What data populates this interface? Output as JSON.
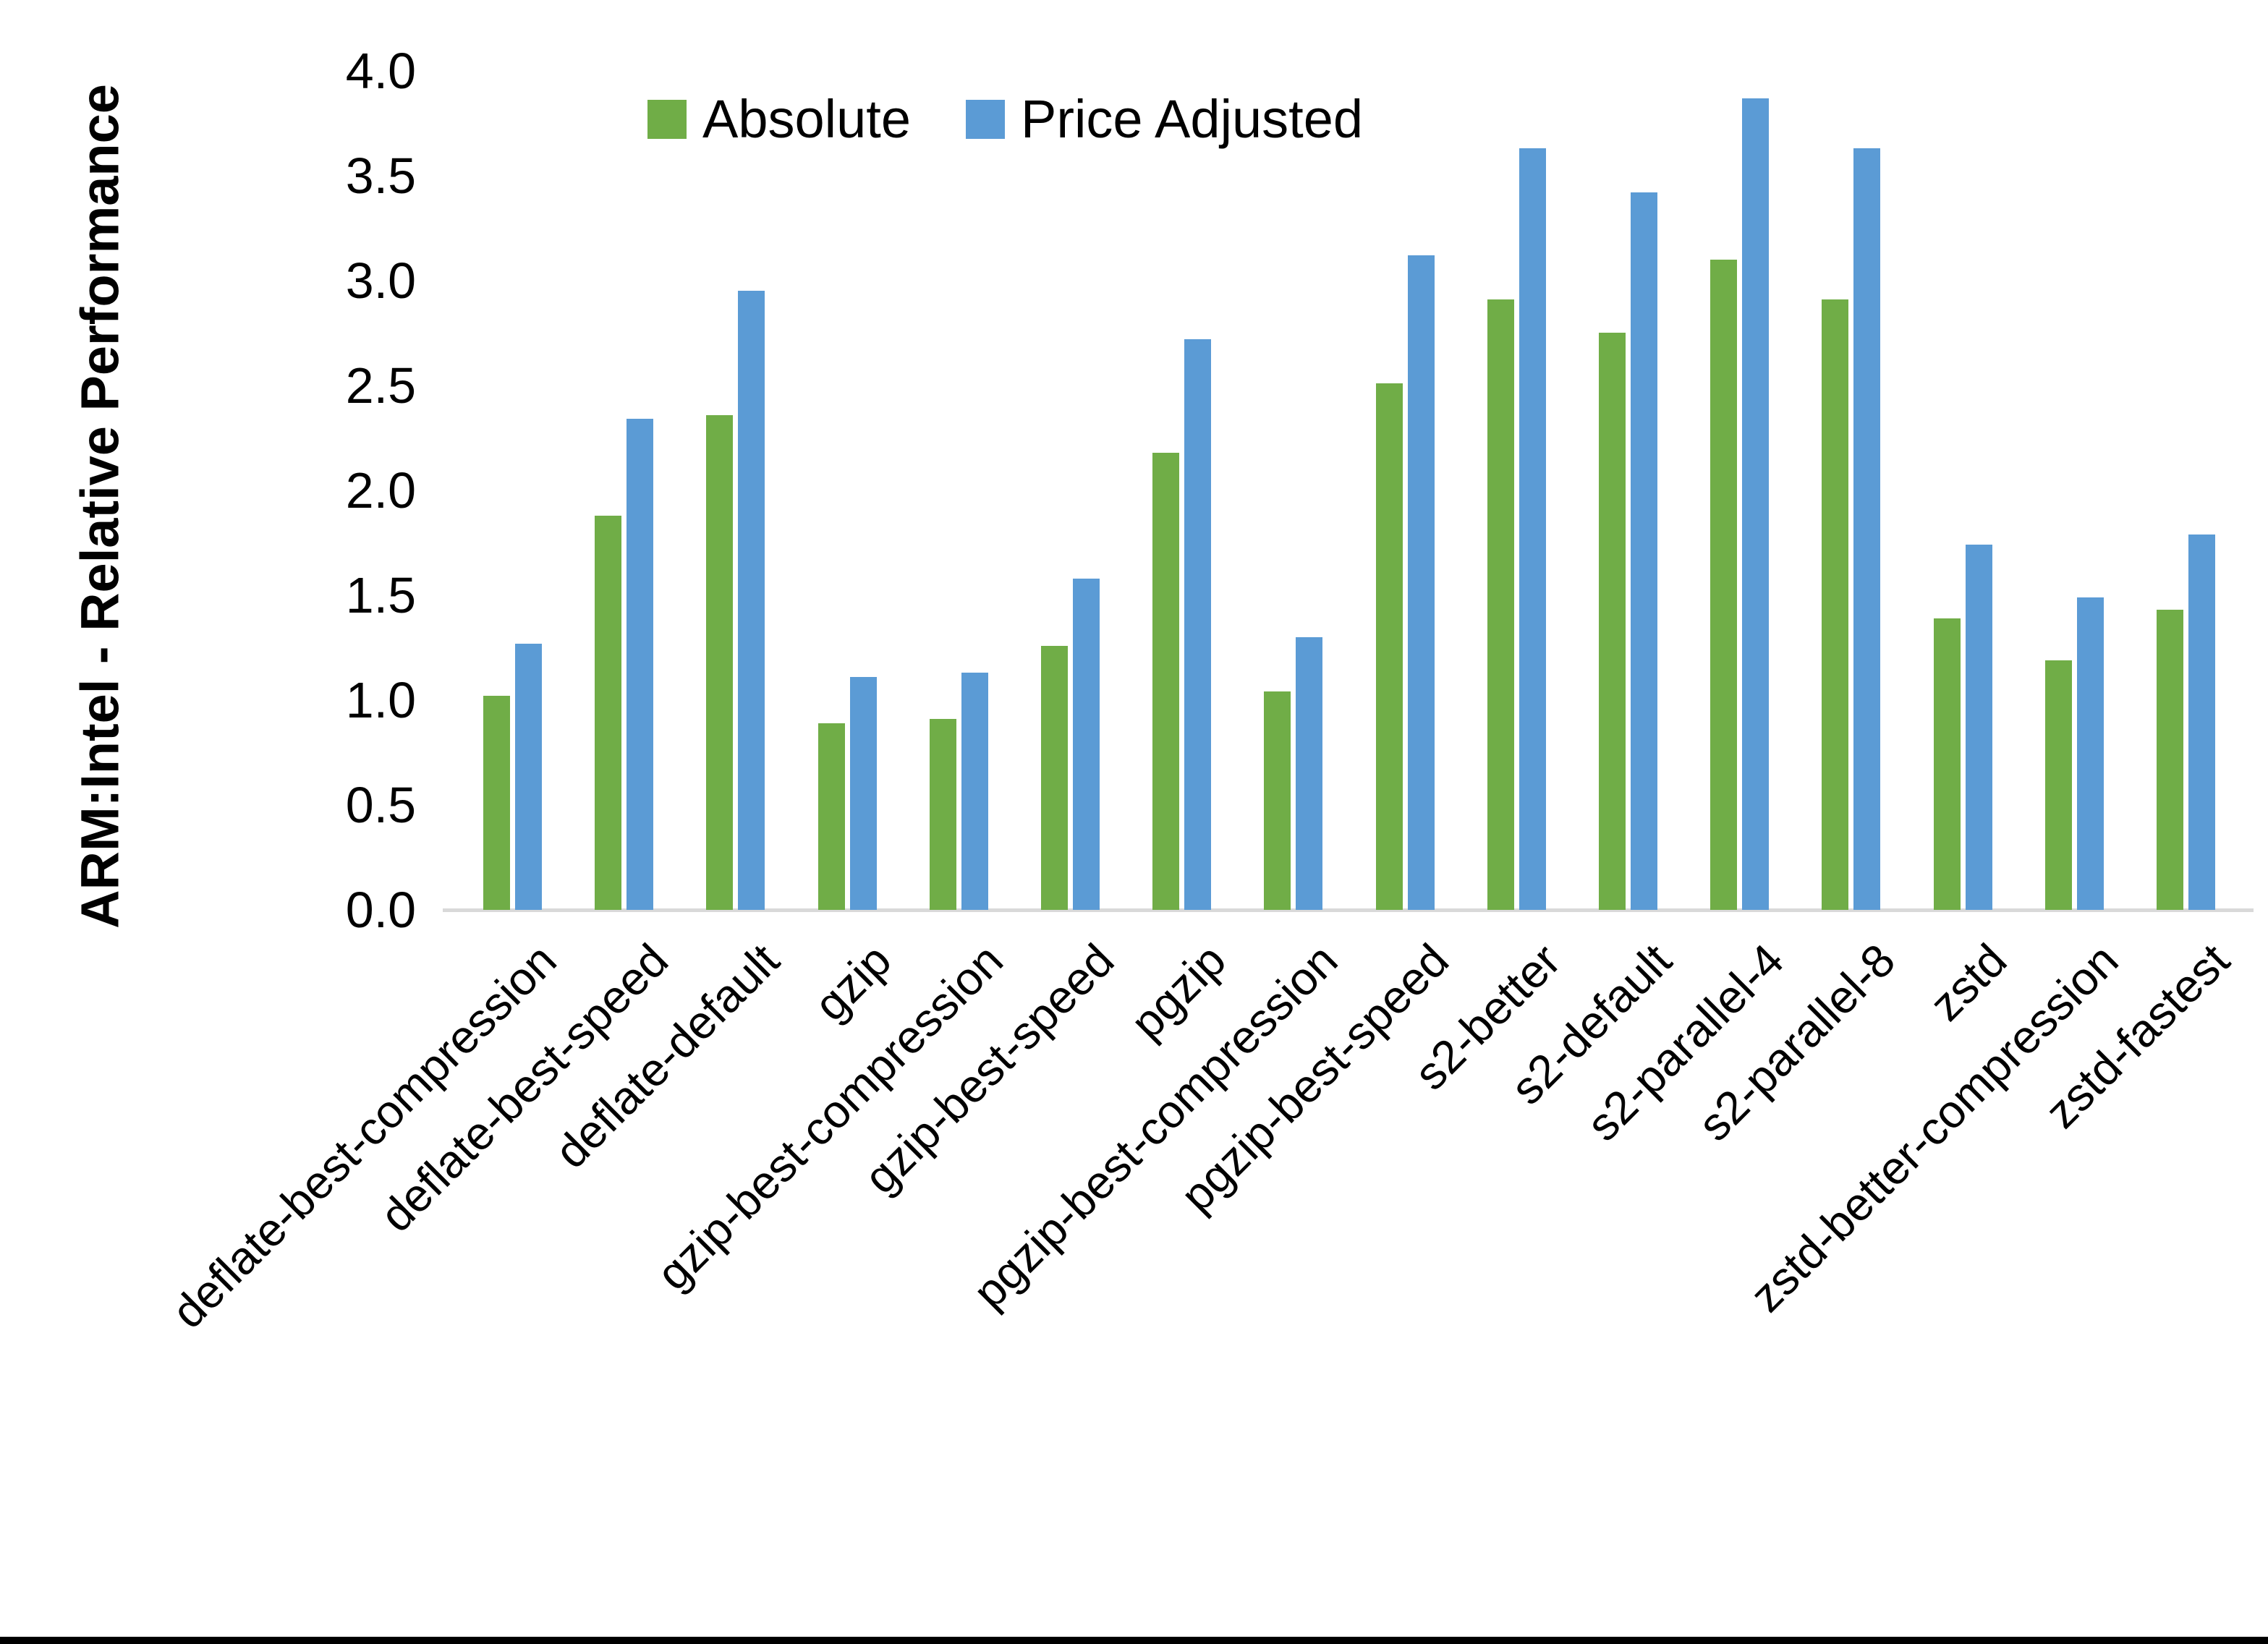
{
  "chart_data": {
    "type": "bar",
    "title": "",
    "xlabel": "",
    "ylabel": "ARM:Intel - Relative Performance",
    "ylim": [
      0.0,
      4.0
    ],
    "yticks": [
      0.0,
      0.5,
      1.0,
      1.5,
      2.0,
      2.5,
      3.0,
      3.5,
      4.0
    ],
    "grid": false,
    "legend_position": "top-center",
    "axis_line_color": "#D9D9D9",
    "categories": [
      "deflate-best-compression",
      "deflate-best-speed",
      "deflate-default",
      "gzip",
      "gzip-best-compression",
      "gzip-best-speed",
      "pgzip",
      "pgzip-best-compression",
      "pgzip-best-speed",
      "s2-better",
      "s2-default",
      "s2-parallel-4",
      "s2-parallel-8",
      "zstd",
      "zstd-better-compression",
      "zstd-fastest"
    ],
    "series": [
      {
        "name": "Absolute",
        "color": "#70AD47",
        "values": [
          1.02,
          1.88,
          2.36,
          0.89,
          0.91,
          1.26,
          2.18,
          1.04,
          2.51,
          2.91,
          2.75,
          3.1,
          2.91,
          1.39,
          1.19,
          1.43
        ]
      },
      {
        "name": "Price Adjusted",
        "color": "#5B9BD5",
        "values": [
          1.27,
          2.34,
          2.95,
          1.11,
          1.13,
          1.58,
          2.72,
          1.3,
          3.12,
          3.63,
          3.42,
          3.87,
          3.63,
          1.74,
          1.49,
          1.79
        ]
      }
    ]
  }
}
